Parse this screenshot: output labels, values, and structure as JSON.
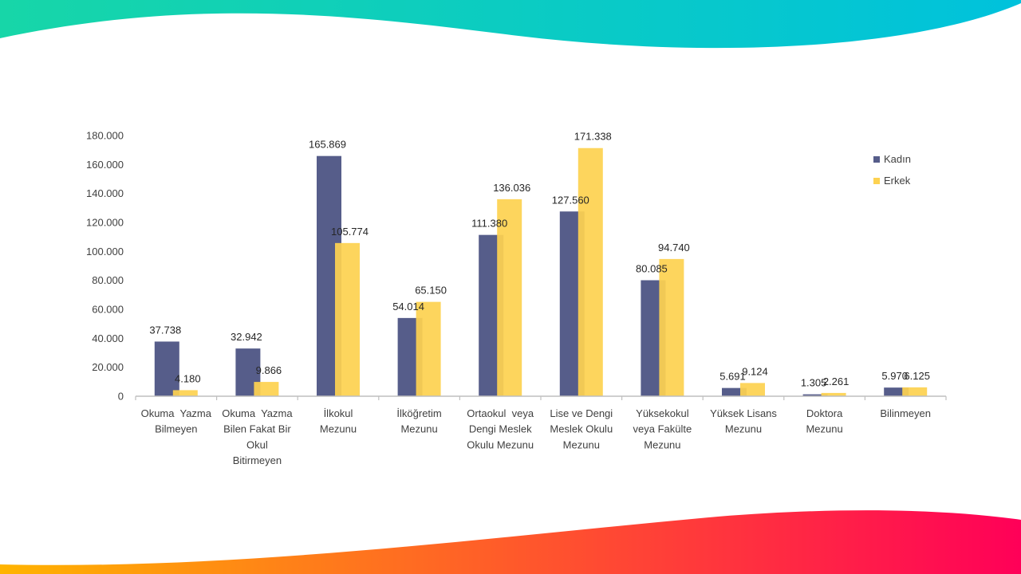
{
  "colors": {
    "kadin": "#565d8a",
    "erkek": "#fdd251",
    "top_gradient_start": "#17d6a8",
    "top_gradient_end": "#00c2dc",
    "bottom_gradient_start": "#ffb400",
    "bottom_gradient_mid": "#ff5a2a",
    "bottom_gradient_end": "#ff0058"
  },
  "chart_data": {
    "type": "bar",
    "title": "",
    "xlabel": "",
    "ylabel": "",
    "ylim": [
      0,
      180000
    ],
    "y_ticks": [
      0,
      20000,
      40000,
      60000,
      80000,
      100000,
      120000,
      140000,
      160000,
      180000
    ],
    "y_tick_labels": [
      "0",
      "20.000",
      "40.000",
      "60.000",
      "80.000",
      "100.000",
      "120.000",
      "140.000",
      "160.000",
      "180.000"
    ],
    "grid": false,
    "legend_position": "top-right",
    "categories": [
      [
        "Okuma  Yazma",
        "Bilmeyen"
      ],
      [
        "Okuma  Yazma",
        "Bilen Fakat Bir",
        "Okul",
        "Bitirmeyen"
      ],
      [
        "İlkokul",
        "Mezunu"
      ],
      [
        "İlköğretim",
        "Mezunu"
      ],
      [
        "Ortaokul  veya",
        "Dengi Meslek",
        "Okulu Mezunu"
      ],
      [
        "Lise ve Dengi",
        "Meslek Okulu",
        "Mezunu"
      ],
      [
        "Yüksekokul",
        "veya Fakülte",
        "Mezunu"
      ],
      [
        "Yüksek Lisans",
        "Mezunu"
      ],
      [
        "Doktora",
        "Mezunu"
      ],
      [
        "Bilinmeyen"
      ]
    ],
    "series": [
      {
        "name": "Kadın",
        "values": [
          37738,
          32942,
          165869,
          54014,
          111380,
          127560,
          80085,
          5691,
          1305,
          5970
        ],
        "labels": [
          "37.738",
          "32.942",
          "165.869",
          "54.014",
          "111.380",
          "127.560",
          "80.085",
          "5.691",
          "1.305",
          "5.970"
        ]
      },
      {
        "name": "Erkek",
        "values": [
          4180,
          9866,
          105774,
          65150,
          136036,
          171338,
          94740,
          9124,
          2261,
          6125
        ],
        "labels": [
          "4.180",
          "9.866",
          "105.774",
          "65.150",
          "136.036",
          "171.338",
          "94.740",
          "9.124",
          "2.261",
          "6.125"
        ]
      }
    ]
  }
}
